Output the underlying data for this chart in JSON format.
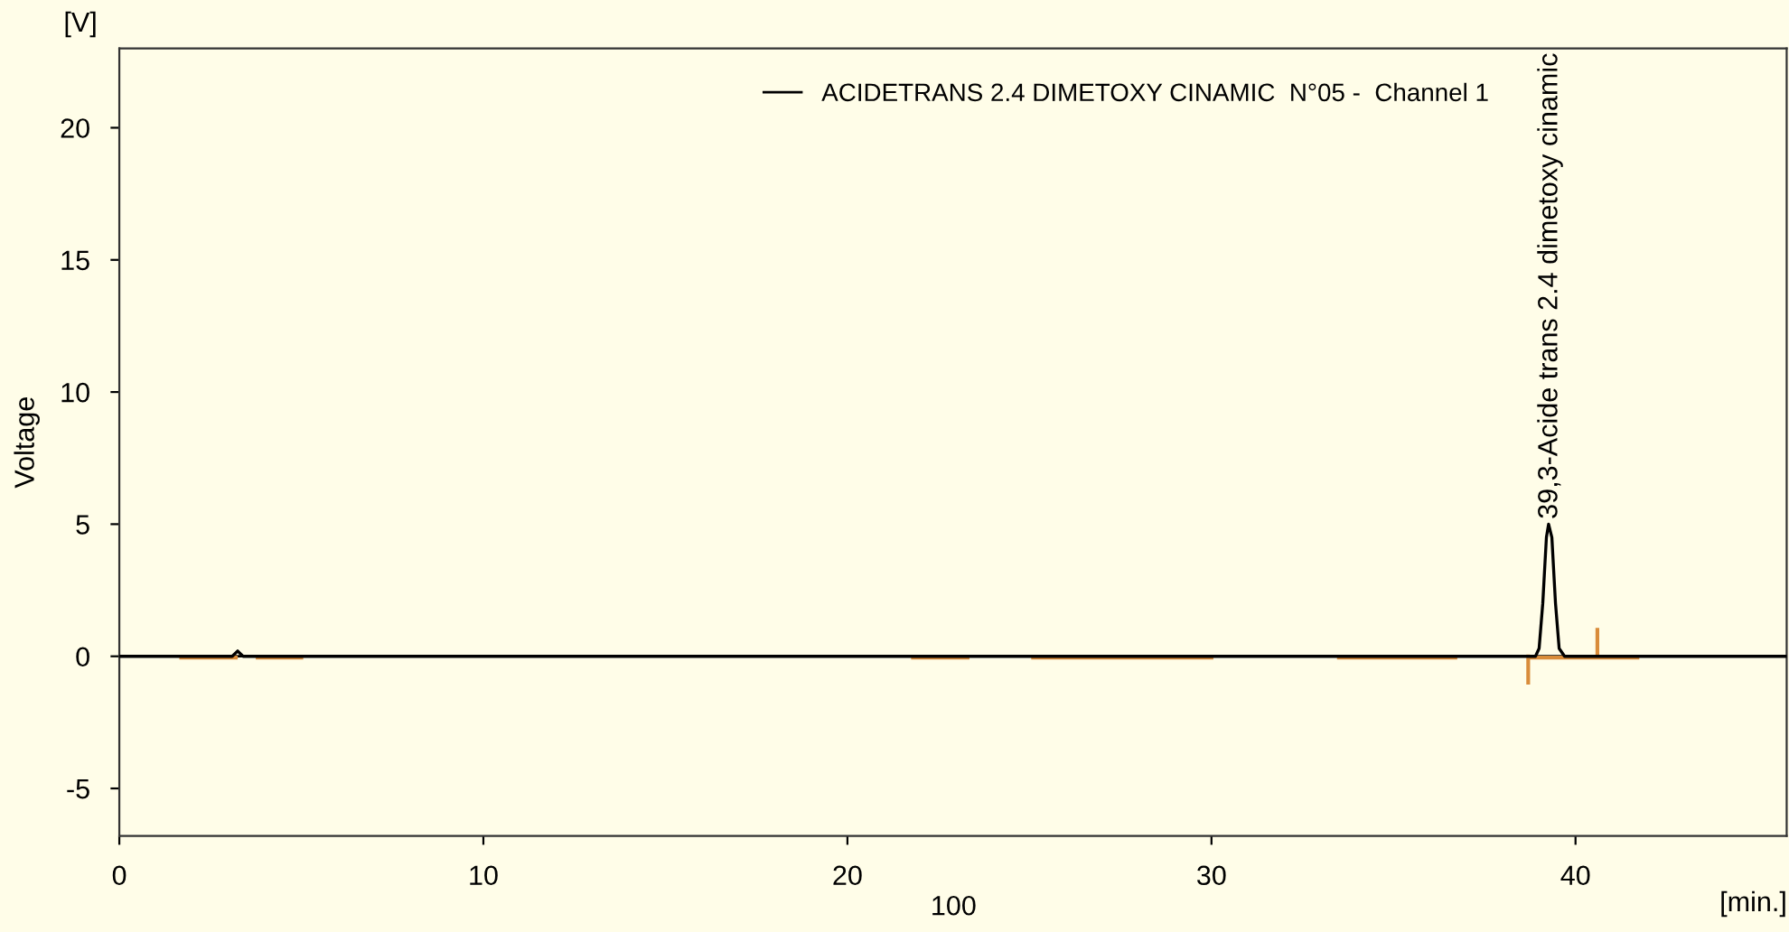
{
  "chart_data": {
    "type": "line",
    "ylabel": "Voltage",
    "xlabel": "[min.]",
    "series": [
      {
        "name": "ACIDETRANS 2.4 DIMETOXY CINAMIC  N°05 -  Channel 1",
        "color": "#000000",
        "x": [
          0,
          3.1,
          3.25,
          3.4,
          38.9,
          39.0,
          39.1,
          39.2,
          39.26,
          39.35,
          39.45,
          39.55,
          39.7,
          45.8
        ],
        "values": [
          0,
          0,
          0.2,
          0,
          0,
          0.3,
          2,
          4.5,
          5.0,
          4.5,
          2,
          0.3,
          0,
          0
        ]
      },
      {
        "color": "#d98c3a",
        "x": [
          1.7,
          3.2,
          null,
          3.8,
          5.0,
          null,
          21.8,
          23.3,
          null,
          25.1,
          30.0,
          null,
          33.5,
          36.7,
          null,
          38.7,
          41.7,
          null,
          38.7,
          38.7,
          null,
          40.6,
          40.6
        ],
        "values": [
          -0.05,
          -0.05,
          null,
          -0.05,
          -0.05,
          null,
          -0.05,
          -0.05,
          null,
          -0.05,
          -0.05,
          null,
          -0.05,
          -0.05,
          null,
          -0.05,
          -0.05,
          null,
          0,
          -1,
          null,
          0,
          1
        ]
      }
    ],
    "xlim": [
      0,
      45.8
    ],
    "ylim": [
      -6.8,
      23
    ],
    "xticks": [
      0,
      10,
      20,
      30,
      40
    ],
    "yticks": [
      -5,
      0,
      5,
      10,
      15,
      20
    ],
    "ref_lines": [
      {
        "axis": "y",
        "value": 0,
        "color": "#000000"
      }
    ],
    "annotations": [
      {
        "text": "39,3-Acide trans 2.4 dimetoxy cinamic",
        "x": 39.3,
        "y": 5.0
      },
      "[V]",
      "100"
    ],
    "legend": "top right",
    "grid": false,
    "marker": "none",
    "line_style": "solid"
  }
}
